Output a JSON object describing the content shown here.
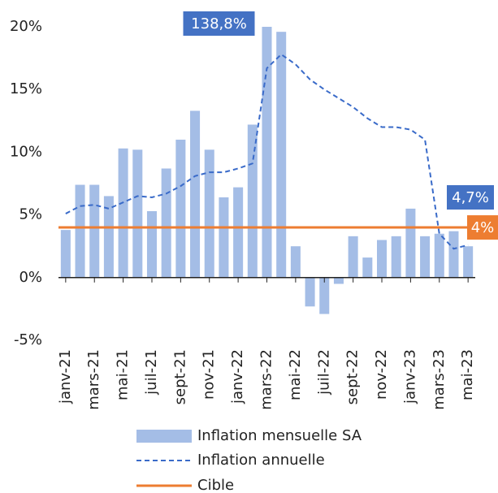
{
  "chart_data": {
    "type": "bar_line",
    "categories": [
      "janv-21",
      null,
      "mars-21",
      null,
      "mai-21",
      null,
      "juil-21",
      null,
      "sept-21",
      null,
      "nov-21",
      null,
      "janv-22",
      null,
      "mars-22",
      null,
      "mai-22",
      null,
      "juil-22",
      null,
      "sept-22",
      null,
      "nov-22",
      null,
      "janv-23",
      null,
      "mars-23",
      null,
      "mai-23"
    ],
    "series": [
      {
        "name": "Inflation mensuelle SA",
        "kind": "bar",
        "color": "#a4bde6",
        "values": [
          3.8,
          7.4,
          7.4,
          6.5,
          10.3,
          10.2,
          5.3,
          8.7,
          11.0,
          13.3,
          10.2,
          6.4,
          7.2,
          12.2,
          138.8,
          19.6,
          2.5,
          -2.3,
          -2.9,
          -0.5,
          3.3,
          1.6,
          3.0,
          3.3,
          5.5,
          3.3,
          3.5,
          3.7,
          2.5
        ],
        "value_labels": [
          null,
          null,
          null,
          null,
          null,
          null,
          null,
          null,
          null,
          null,
          null,
          null,
          null,
          null,
          "138,8%",
          null,
          null,
          null,
          null,
          null,
          null,
          null,
          null,
          null,
          null,
          null,
          null,
          null,
          null
        ]
      },
      {
        "name": "Inflation annuelle",
        "kind": "line",
        "color": "#3a6bc9",
        "values": [
          5.1,
          5.7,
          5.8,
          5.5,
          6.0,
          6.5,
          6.4,
          6.7,
          7.3,
          8.1,
          8.4,
          8.4,
          8.7,
          9.1,
          16.7,
          17.8,
          17.0,
          15.8,
          15.0,
          14.3,
          13.6,
          12.7,
          12.0,
          12.0,
          11.8,
          11.0,
          3.5,
          2.3,
          2.6
        ]
      }
    ],
    "target": {
      "name": "Cible",
      "value": 4,
      "label": "4%",
      "color": "#ed7d31"
    },
    "annotations": [
      {
        "text": "4,7%"
      }
    ],
    "ylim": [
      -5,
      20
    ],
    "yticks": [
      {
        "value": -5,
        "label": "-5%"
      },
      {
        "value": 0,
        "label": "0%"
      },
      {
        "value": 5,
        "label": "5%"
      },
      {
        "value": 10,
        "label": "10%"
      },
      {
        "value": 15,
        "label": "15%"
      },
      {
        "value": 20,
        "label": "20%"
      }
    ],
    "grid": false
  }
}
